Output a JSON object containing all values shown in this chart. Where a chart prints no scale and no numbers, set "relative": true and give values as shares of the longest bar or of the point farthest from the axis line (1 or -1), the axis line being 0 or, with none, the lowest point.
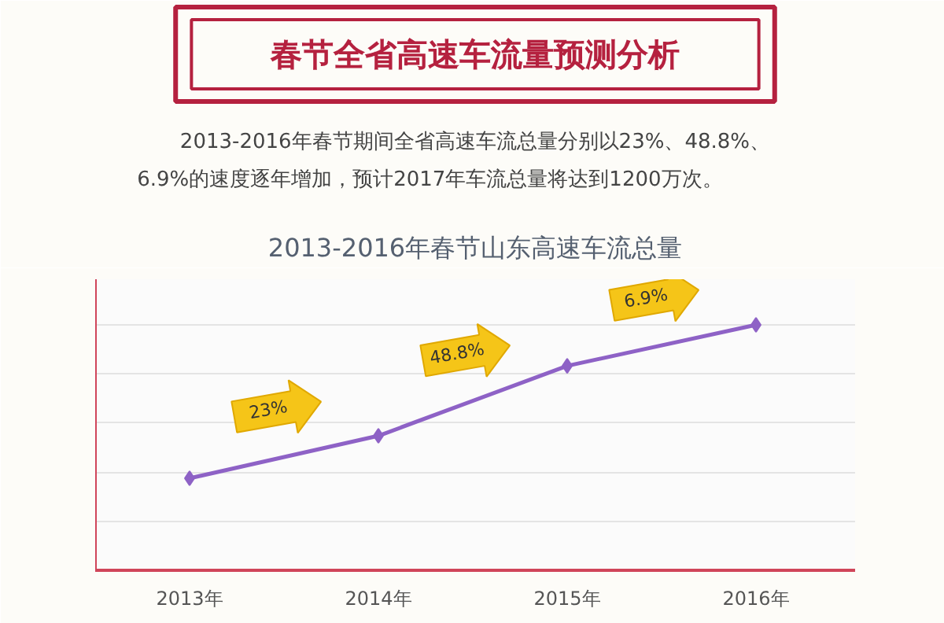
{
  "chart_data": {
    "type": "line",
    "title": "春节全省高速车流量预测分析",
    "subtitle": "2013-2016年春节期间全省高速车流总量分别以23%、48.8%、\n6.9%的速度逐年增加，预计2017年车流总量将达到1200万次。",
    "annotations": [
      "2013-2016年春节山东高速车流总量",
      "23%",
      "48.8%",
      "6.9%"
    ],
    "categories": [
      "2013年",
      "2014年",
      "2015年",
      "2016年"
    ],
    "series": [
      {
        "color": "#8e62c6",
        "values": [
          0.375,
          0.548,
          0.833,
          1.0
        ]
      }
    ],
    "relative": true,
    "grid": "y",
    "marker": "diamond",
    "line_style": "solid"
  }
}
